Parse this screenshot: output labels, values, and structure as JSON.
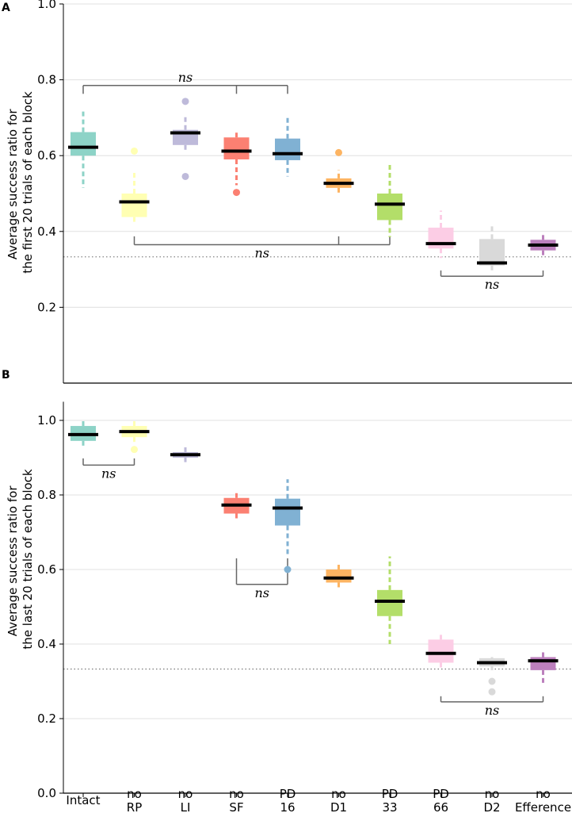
{
  "chart_data": [
    {
      "panel": "A",
      "type": "box",
      "ylabel": [
        "Average success ratio for",
        "the first 20 trials of each block"
      ],
      "ylim": [
        0.0,
        1.0
      ],
      "yticks": [
        "0.2",
        "0.4",
        "0.6",
        "0.8",
        "1.0"
      ],
      "chance_level": 0.333,
      "boxes": [
        {
          "key": "intact",
          "q1": 0.6,
          "q3": 0.662,
          "median": 0.622,
          "whisker_low": 0.515,
          "whisker_high": 0.718,
          "outliers": [],
          "color": "#8dd3c7"
        },
        {
          "key": "norp",
          "q1": 0.438,
          "q3": 0.5,
          "median": 0.478,
          "whisker_low": 0.42,
          "whisker_high": 0.56,
          "outliers": [
            0.612
          ],
          "color": "#ffffb3"
        },
        {
          "key": "noli",
          "q1": 0.628,
          "q3": 0.668,
          "median": 0.66,
          "whisker_low": 0.608,
          "whisker_high": 0.708,
          "outliers": [
            0.743,
            0.545
          ],
          "color": "#bebada"
        },
        {
          "key": "nosf",
          "q1": 0.59,
          "q3": 0.648,
          "median": 0.612,
          "whisker_low": 0.522,
          "whisker_high": 0.665,
          "outliers": [
            0.503
          ],
          "color": "#fb8072"
        },
        {
          "key": "pd16",
          "q1": 0.588,
          "q3": 0.645,
          "median": 0.605,
          "whisker_low": 0.545,
          "whisker_high": 0.7,
          "outliers": [],
          "color": "#80b1d3"
        },
        {
          "key": "nod1",
          "q1": 0.515,
          "q3": 0.54,
          "median": 0.527,
          "whisker_low": 0.5,
          "whisker_high": 0.562,
          "outliers": [
            0.608
          ],
          "color": "#fdb462"
        },
        {
          "key": "pd33",
          "q1": 0.43,
          "q3": 0.5,
          "median": 0.472,
          "whisker_low": 0.385,
          "whisker_high": 0.58,
          "outliers": [],
          "color": "#b3de69"
        },
        {
          "key": "pd66",
          "q1": 0.355,
          "q3": 0.41,
          "median": 0.368,
          "whisker_low": 0.33,
          "whisker_high": 0.455,
          "outliers": [],
          "color": "#fccde5"
        },
        {
          "key": "nod2",
          "q1": 0.31,
          "q3": 0.38,
          "median": 0.317,
          "whisker_low": 0.295,
          "whisker_high": 0.42,
          "outliers": [],
          "color": "#d9d9d9"
        },
        {
          "key": "noefference",
          "q1": 0.35,
          "q3": 0.378,
          "median": 0.364,
          "whisker_low": 0.335,
          "whisker_high": 0.395,
          "outliers": [],
          "color": "#bc80bd"
        }
      ],
      "brackets": [
        {
          "label": "ns",
          "y": 0.785,
          "dir": "down",
          "arm": 0.022,
          "from": 0,
          "to": 4,
          "mids": [
            3
          ],
          "label_side": "above"
        },
        {
          "label": "ns",
          "y": 0.365,
          "dir": "up",
          "arm": 0.022,
          "from": 1,
          "to": 6,
          "mids": [
            5
          ],
          "label_side": "below"
        },
        {
          "label": "ns",
          "y": 0.282,
          "dir": "up",
          "arm": 0.015,
          "from": 7,
          "to": 9,
          "mids": [],
          "label_side": "below"
        }
      ]
    },
    {
      "panel": "B",
      "type": "box",
      "ylabel": [
        "Average success ratio for",
        "the last 20 trials of each block"
      ],
      "ylim": [
        0.0,
        1.05
      ],
      "yticks": [
        "0.0",
        "0.2",
        "0.4",
        "0.6",
        "0.8",
        "1.0"
      ],
      "chance_level": 0.333,
      "boxes": [
        {
          "key": "intact",
          "q1": 0.945,
          "q3": 0.985,
          "median": 0.962,
          "whisker_low": 0.925,
          "whisker_high": 1.0,
          "outliers": [],
          "color": "#8dd3c7"
        },
        {
          "key": "norp",
          "q1": 0.955,
          "q3": 0.985,
          "median": 0.97,
          "whisker_low": 0.94,
          "whisker_high": 1.0,
          "outliers": [
            0.922
          ],
          "color": "#ffffb3"
        },
        {
          "key": "noli",
          "q1": 0.9,
          "q3": 0.915,
          "median": 0.908,
          "whisker_low": 0.888,
          "whisker_high": 0.935,
          "outliers": [],
          "color": "#bebada"
        },
        {
          "key": "nosf",
          "q1": 0.75,
          "q3": 0.792,
          "median": 0.773,
          "whisker_low": 0.73,
          "whisker_high": 0.81,
          "outliers": [],
          "color": "#fb8072"
        },
        {
          "key": "pd16",
          "q1": 0.718,
          "q3": 0.79,
          "median": 0.765,
          "whisker_low": 0.64,
          "whisker_high": 0.842,
          "outliers": [
            0.6
          ],
          "color": "#80b1d3"
        },
        {
          "key": "nod1",
          "q1": 0.565,
          "q3": 0.6,
          "median": 0.577,
          "whisker_low": 0.545,
          "whisker_high": 0.62,
          "outliers": [],
          "color": "#fdb462"
        },
        {
          "key": "pd33",
          "q1": 0.475,
          "q3": 0.545,
          "median": 0.515,
          "whisker_low": 0.4,
          "whisker_high": 0.635,
          "outliers": [],
          "color": "#b3de69"
        },
        {
          "key": "pd66",
          "q1": 0.35,
          "q3": 0.412,
          "median": 0.375,
          "whisker_low": 0.33,
          "whisker_high": 0.432,
          "outliers": [],
          "color": "#fccde5"
        },
        {
          "key": "nod2",
          "q1": 0.34,
          "q3": 0.362,
          "median": 0.35,
          "whisker_low": 0.33,
          "whisker_high": 0.365,
          "outliers": [
            0.3,
            0.272
          ],
          "color": "#d9d9d9"
        },
        {
          "key": "noefference",
          "q1": 0.33,
          "q3": 0.365,
          "median": 0.355,
          "whisker_low": 0.295,
          "whisker_high": 0.385,
          "outliers": [],
          "color": "#bc80bd"
        }
      ],
      "brackets": [
        {
          "label": "ns",
          "y": 0.88,
          "dir": "up",
          "arm": 0.018,
          "from": 0,
          "to": 1,
          "mids": [],
          "label_side": "below"
        },
        {
          "label": "ns",
          "y": 0.56,
          "dir": "up",
          "arm": 0.07,
          "from": 3,
          "to": 4,
          "mids": [],
          "label_side": "below"
        },
        {
          "label": "ns",
          "y": 0.245,
          "dir": "up",
          "arm": 0.015,
          "from": 7,
          "to": 9,
          "mids": [],
          "label_side": "below"
        }
      ]
    }
  ],
  "categories": [
    {
      "key": "intact",
      "label": [
        "Intact"
      ]
    },
    {
      "key": "norp",
      "label": [
        "no",
        "RP"
      ]
    },
    {
      "key": "noli",
      "label": [
        "no",
        "LI"
      ]
    },
    {
      "key": "nosf",
      "label": [
        "no",
        "SF"
      ]
    },
    {
      "key": "pd16",
      "label": [
        "PD",
        "16"
      ]
    },
    {
      "key": "nod1",
      "label": [
        "no",
        "D1"
      ]
    },
    {
      "key": "pd33",
      "label": [
        "PD",
        "33"
      ]
    },
    {
      "key": "pd66",
      "label": [
        "PD",
        "66"
      ]
    },
    {
      "key": "nod2",
      "label": [
        "no",
        "D2"
      ]
    },
    {
      "key": "noefference",
      "label": [
        "no",
        "Efference"
      ]
    }
  ],
  "colors": {
    "axis": "#000000",
    "grid": "#e0e0e0",
    "bracket": "#666666",
    "median": "#000000",
    "chance": "#777777"
  }
}
